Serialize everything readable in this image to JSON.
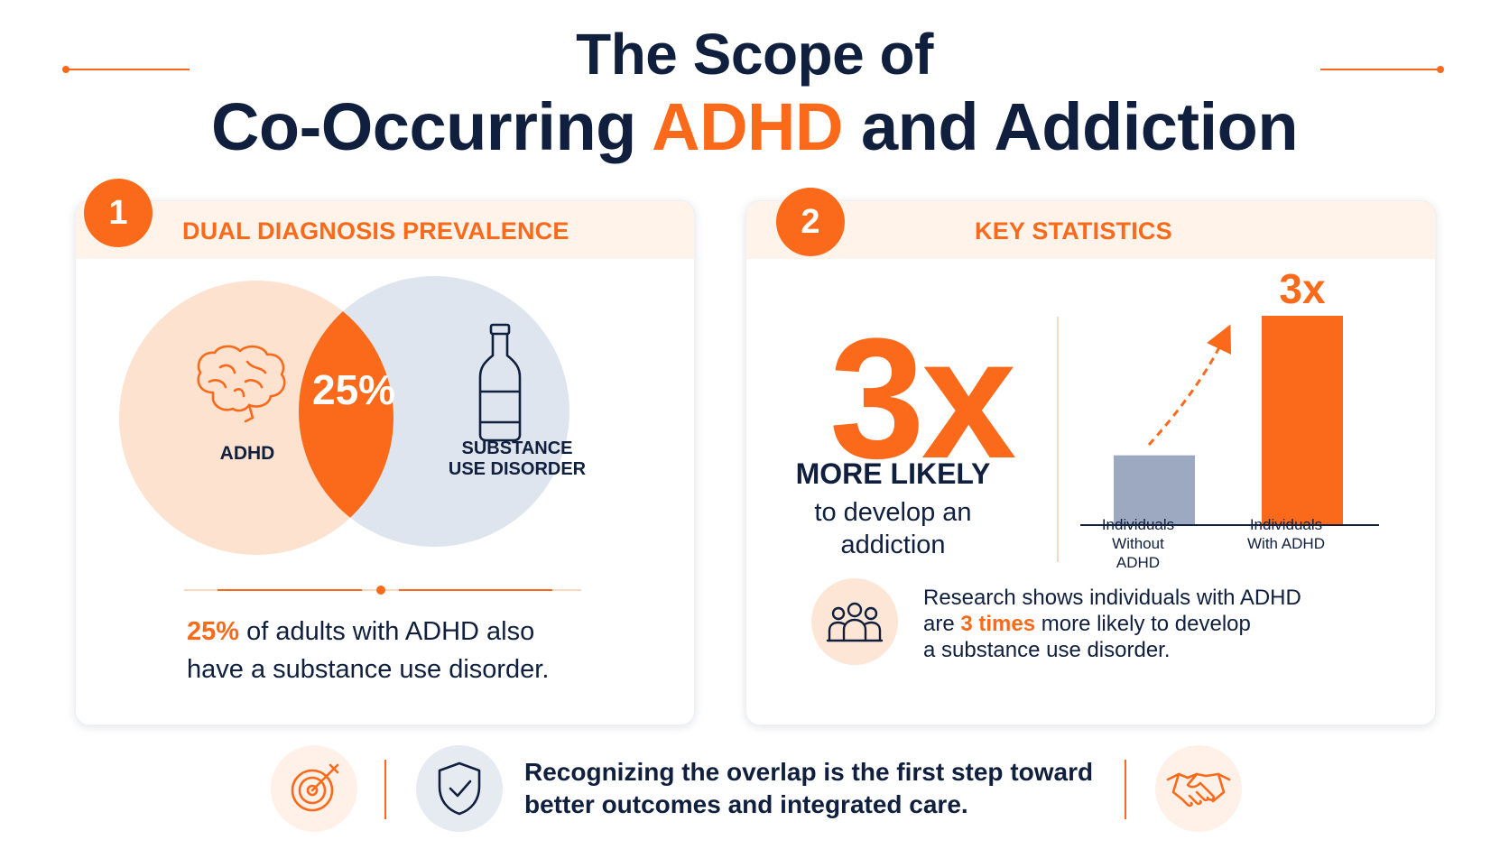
{
  "header": {
    "title_line1": "The Scope of",
    "title_line2_pre": "Co-Occurring ",
    "title_line2_accent": "ADHD",
    "title_line2_post": " and Addiction"
  },
  "colors": {
    "accent": "#fb6a1b",
    "navy": "#0f1f3d",
    "peach": "#fde2d0",
    "blue_gray": "#dfe5ee",
    "bar_gray": "#9da9c0"
  },
  "panel1": {
    "number": "1",
    "title": "DUAL DIAGNOSIS PREVALENCE",
    "venn": {
      "left_label": "ADHD",
      "left_icon": "brain-icon",
      "right_label_line1": "SUBSTANCE",
      "right_label_line2": "USE DISORDER",
      "right_icon": "bottle-icon",
      "overlap_value": "25%"
    },
    "stat_highlight": "25%",
    "stat_line1_rest": " of adults with ADHD also",
    "stat_line2": "have a substance use disorder."
  },
  "panel2": {
    "number": "2",
    "title": "KEY STATISTICS",
    "big_value": "3x",
    "more_likely": "MORE LIKELY",
    "develop_line1": "to develop an",
    "develop_line2": "addiction",
    "chart_data": {
      "type": "bar",
      "categories": [
        "Individuals Without ADHD",
        "Individuals With ADHD"
      ],
      "category_lines": [
        [
          "Individuals",
          "Without ADHD"
        ],
        [
          "Individuals",
          "With ADHD"
        ]
      ],
      "values": [
        1,
        3
      ],
      "data_labels": [
        "",
        "3x"
      ],
      "colors": [
        "#9da9c0",
        "#fb6a1b"
      ],
      "ylim": [
        0,
        3
      ],
      "grid": false,
      "title": "",
      "xlabel": "",
      "ylabel": ""
    },
    "research_icon": "people-icon",
    "research_line1": "Research shows individuals with ADHD",
    "research_line2_pre": "are ",
    "research_line2_hl": "3 times",
    "research_line2_post": " more likely to develop",
    "research_line3": "a substance use disorder."
  },
  "footer": {
    "icons": [
      "target-icon",
      "shield-check-icon",
      "handshake-icon"
    ],
    "line1": "Recognizing the overlap is the first step toward",
    "line2": "better outcomes and integrated care."
  }
}
